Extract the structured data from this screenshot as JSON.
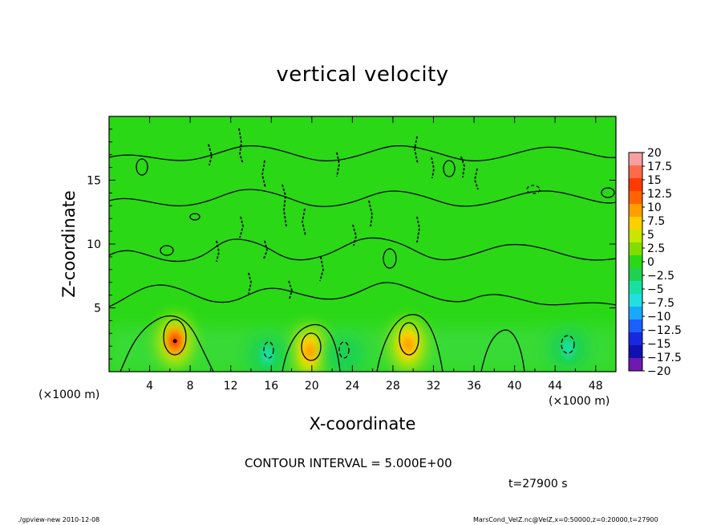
{
  "title": "vertical velocity",
  "contour_interval": "CONTOUR INTERVAL = 5.000E+00",
  "time_label": "t=27900 s",
  "footer": {
    "left": "./gpview-new  2010-12-08",
    "right": "MarsCond_VelZ.nc@VelZ,x=0:50000,z=0:20000,t=27900"
  },
  "colors": {
    "background_field": "#2ad816",
    "contour_line": "#000000"
  },
  "chart_data": {
    "type": "heatmap",
    "title": "vertical velocity",
    "xlabel": "X-coordinate",
    "ylabel": "Z-coordinate",
    "x_unit": "(×1000 m)",
    "xlim": [
      0,
      50
    ],
    "ylim": [
      0,
      20
    ],
    "x_ticks": [
      4,
      8,
      12,
      16,
      20,
      24,
      28,
      32,
      36,
      40,
      44,
      48
    ],
    "y_ticks": [
      5,
      10,
      15
    ],
    "grid": false,
    "colorbar": {
      "levels": [
        -20,
        -17.5,
        -15,
        -12.5,
        -10,
        -7.5,
        -5,
        -2.5,
        0,
        2.5,
        5,
        7.5,
        10,
        12.5,
        15,
        17.5,
        20
      ],
      "labels": [
        "20",
        "17.5",
        "15",
        "12.5",
        "10",
        "7.5",
        "5",
        "2.5",
        "0",
        "−2.5",
        "−5",
        "−7.5",
        "−10",
        "−12.5",
        "−15",
        "−17.5",
        "−20"
      ],
      "colors": [
        "#f8a0a0",
        "#ff6a4a",
        "#ff3a00",
        "#ff6400",
        "#ff9e00",
        "#ffd000",
        "#c8e600",
        "#82dc00",
        "#2ad816",
        "#1ed250",
        "#18e0a0",
        "#22e0e0",
        "#1aa8ff",
        "#1a60ff",
        "#1828e0",
        "#1010b0",
        "#7018b0"
      ]
    },
    "features": [
      {
        "kind": "updraft",
        "x": 6.5,
        "z": 2.4,
        "peak": 12.5
      },
      {
        "kind": "updraft",
        "x": 19.8,
        "z": 1.6,
        "peak": 7.5
      },
      {
        "kind": "updraft",
        "x": 29.5,
        "z": 2.1,
        "peak": 7.5
      },
      {
        "kind": "downdraft",
        "x": 15.6,
        "z": 1.3,
        "peak": -7.5
      },
      {
        "kind": "downdraft",
        "x": 23.2,
        "z": 1.3,
        "peak": -5
      },
      {
        "kind": "downdraft",
        "x": 45.3,
        "z": 1.8,
        "peak": -7.5
      }
    ],
    "contour_interval": 5.0
  }
}
